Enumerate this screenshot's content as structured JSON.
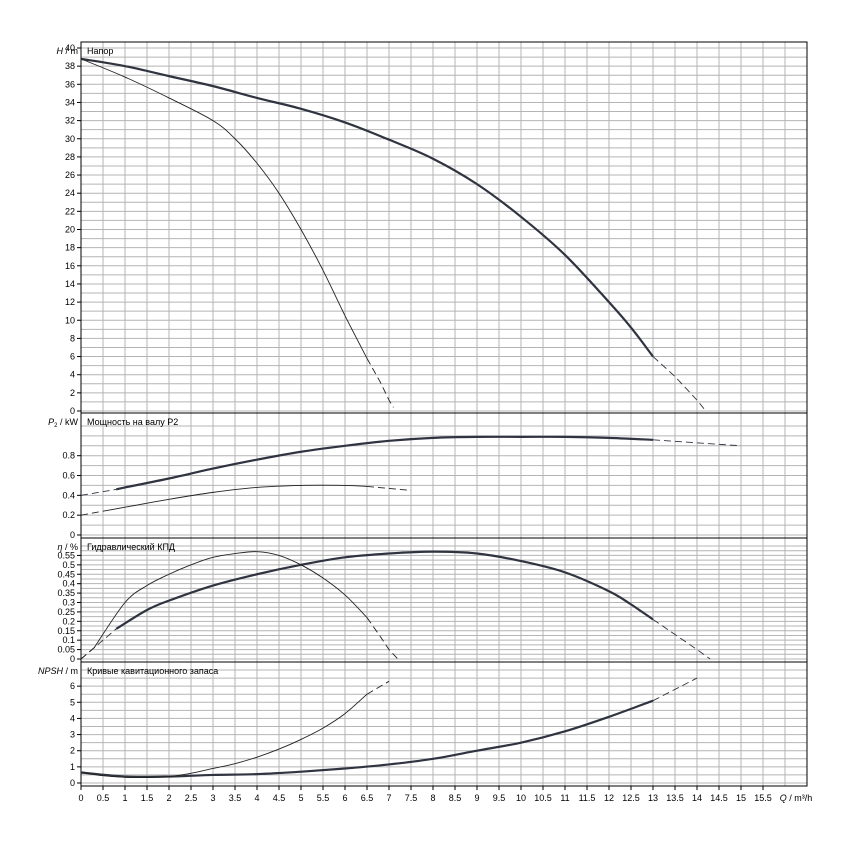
{
  "chart_data": {
    "type": "line",
    "x_axis": {
      "min": 0,
      "max": 16.5,
      "step": 0.5,
      "label_units": "Q / m³/h",
      "tick_labels": [
        "0",
        "0.5",
        "1",
        "1.5",
        "2",
        "2.5",
        "3",
        "3.5",
        "4",
        "4.5",
        "5",
        "5.5",
        "6",
        "6.5",
        "7",
        "7.5",
        "8",
        "8.5",
        "9",
        "9.5",
        "10",
        "10.5",
        "11",
        "11.5",
        "12",
        "12.5",
        "13",
        "13.5",
        "14",
        "14.5",
        "15",
        "15.5"
      ]
    },
    "panels": [
      {
        "key": "head",
        "title": "Напор",
        "ylabel_symbol": "H",
        "ylabel_units": " / m",
        "ylim": [
          0,
          40
        ],
        "y_ticks": [
          0,
          2,
          4,
          6,
          8,
          10,
          12,
          14,
          16,
          18,
          20,
          22,
          24,
          26,
          28,
          30,
          32,
          34,
          36,
          38,
          40
        ],
        "series": [
          {
            "id": "head-max",
            "weight": "thick",
            "solid": [
              [
                0,
                38.8
              ],
              [
                1,
                38
              ],
              [
                2,
                36.9
              ],
              [
                3,
                35.8
              ],
              [
                4,
                34.5
              ],
              [
                5,
                33.3
              ],
              [
                6,
                31.8
              ],
              [
                7,
                29.9
              ],
              [
                8,
                27.8
              ],
              [
                9,
                25
              ],
              [
                10,
                21.4
              ],
              [
                11,
                17.2
              ],
              [
                12,
                12
              ],
              [
                12.5,
                9.2
              ],
              [
                13,
                6
              ]
            ],
            "dashed": [
              [
                13,
                6
              ],
              [
                13.5,
                3.8
              ],
              [
                14,
                1.2
              ],
              [
                14.2,
                0
              ]
            ]
          },
          {
            "id": "head-min",
            "weight": "thin",
            "solid": [
              [
                0,
                38.8
              ],
              [
                1,
                36.8
              ],
              [
                2,
                34.5
              ],
              [
                3,
                32
              ],
              [
                3.5,
                30
              ],
              [
                4,
                27.3
              ],
              [
                4.5,
                24
              ],
              [
                5,
                20
              ],
              [
                5.5,
                15.5
              ],
              [
                6,
                10.5
              ],
              [
                6.5,
                5.8
              ]
            ],
            "dashed": [
              [
                6.5,
                5.8
              ],
              [
                6.8,
                3.2
              ],
              [
                7,
                1.2
              ],
              [
                7.1,
                0.4
              ]
            ]
          }
        ]
      },
      {
        "key": "power",
        "title": "Мощность на валу P2",
        "ylabel_symbol": "P",
        "ylabel_sub": "2",
        "ylabel_units": " / kW",
        "ylim": [
          0,
          1.15
        ],
        "y_ticks": [
          0,
          0.2,
          0.4,
          0.6,
          0.8
        ],
        "y_tick_labels": [
          "0",
          "0.2",
          "0.4",
          "0.6",
          "0.8"
        ],
        "series": [
          {
            "id": "power-max",
            "weight": "thick",
            "dashed_start": [
              [
                0,
                0.4
              ],
              [
                0.8,
                0.46
              ]
            ],
            "solid": [
              [
                0.8,
                0.46
              ],
              [
                1,
                0.48
              ],
              [
                2,
                0.57
              ],
              [
                3,
                0.67
              ],
              [
                4,
                0.76
              ],
              [
                5,
                0.84
              ],
              [
                6,
                0.9
              ],
              [
                7,
                0.95
              ],
              [
                8,
                0.98
              ],
              [
                9,
                0.99
              ],
              [
                10,
                0.99
              ],
              [
                11,
                0.99
              ],
              [
                12,
                0.98
              ],
              [
                13,
                0.96
              ]
            ],
            "dashed": [
              [
                13,
                0.96
              ],
              [
                14,
                0.93
              ],
              [
                15,
                0.9
              ]
            ]
          },
          {
            "id": "power-min",
            "weight": "thin",
            "dashed_start": [
              [
                0,
                0.2
              ],
              [
                0.5,
                0.24
              ]
            ],
            "solid": [
              [
                0.5,
                0.24
              ],
              [
                1,
                0.28
              ],
              [
                2,
                0.36
              ],
              [
                3,
                0.43
              ],
              [
                4,
                0.48
              ],
              [
                5,
                0.5
              ],
              [
                6,
                0.5
              ],
              [
                6.5,
                0.49
              ]
            ],
            "dashed": [
              [
                6.5,
                0.49
              ],
              [
                7,
                0.47
              ],
              [
                7.5,
                0.45
              ]
            ]
          }
        ]
      },
      {
        "key": "efficiency",
        "title": "Гидравлический КПД",
        "ylabel_symbol": "η",
        "ylabel_units": " / %",
        "ylim": [
          0,
          0.6
        ],
        "y_ticks": [
          0,
          0.05,
          0.1,
          0.15,
          0.2,
          0.25,
          0.3,
          0.35,
          0.4,
          0.45,
          0.5,
          0.55
        ],
        "y_tick_labels": [
          "0",
          "0.05",
          "0.1",
          "0.15",
          "0.2",
          "0.25",
          "0.3",
          "0.35",
          "0.4",
          "0.45",
          "0.5",
          "0.55"
        ],
        "series": [
          {
            "id": "eff-max",
            "weight": "thick",
            "dashed_start": [
              [
                0,
                0
              ],
              [
                0.8,
                0.16
              ]
            ],
            "solid": [
              [
                0.8,
                0.16
              ],
              [
                1.5,
                0.26
              ],
              [
                2,
                0.31
              ],
              [
                3,
                0.39
              ],
              [
                4,
                0.45
              ],
              [
                5,
                0.5
              ],
              [
                6,
                0.54
              ],
              [
                7,
                0.56
              ],
              [
                8,
                0.57
              ],
              [
                9,
                0.56
              ],
              [
                10,
                0.52
              ],
              [
                11,
                0.46
              ],
              [
                12,
                0.36
              ],
              [
                12.5,
                0.29
              ],
              [
                13,
                0.21
              ]
            ],
            "dashed": [
              [
                13,
                0.21
              ],
              [
                13.5,
                0.13
              ],
              [
                14,
                0.05
              ],
              [
                14.3,
                0
              ]
            ]
          },
          {
            "id": "eff-min",
            "weight": "thin",
            "dashed_start": [
              [
                0,
                0
              ],
              [
                0.3,
                0.06
              ]
            ],
            "solid": [
              [
                0.3,
                0.06
              ],
              [
                1,
                0.3
              ],
              [
                1.5,
                0.39
              ],
              [
                2,
                0.45
              ],
              [
                2.5,
                0.5
              ],
              [
                3,
                0.54
              ],
              [
                3.5,
                0.56
              ],
              [
                4,
                0.57
              ],
              [
                4.5,
                0.55
              ],
              [
                5,
                0.5
              ],
              [
                5.5,
                0.43
              ],
              [
                6,
                0.34
              ],
              [
                6.5,
                0.22
              ]
            ],
            "dashed": [
              [
                6.5,
                0.22
              ],
              [
                6.8,
                0.12
              ],
              [
                7,
                0.05
              ],
              [
                7.2,
                0
              ]
            ]
          }
        ]
      },
      {
        "key": "npsh",
        "title": "Кривые кавитационного запаса",
        "ylabel_symbol": "NPSH",
        "ylabel_units": " / m",
        "ylim": [
          0,
          7
        ],
        "y_ticks": [
          0,
          1,
          2,
          3,
          4,
          5,
          6
        ],
        "series": [
          {
            "id": "npsh-max",
            "weight": "thick",
            "solid": [
              [
                0,
                0.65
              ],
              [
                1,
                0.4
              ],
              [
                2,
                0.4
              ],
              [
                3,
                0.5
              ],
              [
                4,
                0.55
              ],
              [
                5,
                0.7
              ],
              [
                6,
                0.9
              ],
              [
                7,
                1.15
              ],
              [
                8,
                1.5
              ],
              [
                9,
                2
              ],
              [
                10,
                2.5
              ],
              [
                11,
                3.2
              ],
              [
                12,
                4.1
              ],
              [
                13,
                5.1
              ]
            ],
            "dashed": [
              [
                13,
                5.1
              ],
              [
                13.5,
                5.8
              ],
              [
                14,
                6.5
              ]
            ]
          },
          {
            "id": "npsh-min",
            "weight": "thin",
            "solid": [
              [
                0,
                0.65
              ],
              [
                0.5,
                0.45
              ],
              [
                1,
                0.35
              ],
              [
                1.5,
                0.35
              ],
              [
                2,
                0.4
              ],
              [
                2.5,
                0.6
              ],
              [
                3,
                0.9
              ],
              [
                3.5,
                1.2
              ],
              [
                4,
                1.6
              ],
              [
                4.5,
                2.1
              ],
              [
                5,
                2.7
              ],
              [
                5.5,
                3.4
              ],
              [
                6,
                4.3
              ],
              [
                6.5,
                5.5
              ]
            ],
            "dashed": [
              [
                6.5,
                5.5
              ],
              [
                7,
                6.3
              ]
            ]
          }
        ]
      }
    ]
  }
}
